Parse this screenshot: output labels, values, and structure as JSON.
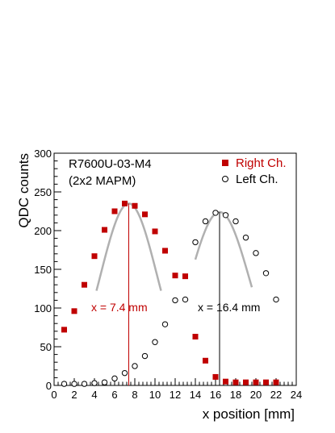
{
  "chart_data": {
    "type": "scatter",
    "xlabel": "x position [mm]",
    "ylabel": "QDC counts",
    "xlim": [
      0,
      24
    ],
    "ylim": [
      0,
      300
    ],
    "x_ticks": [
      "0",
      "2",
      "4",
      "6",
      "8",
      "10",
      "12",
      "14",
      "16",
      "18",
      "20",
      "22",
      "24"
    ],
    "y_ticks": [
      "0",
      "50",
      "100",
      "150",
      "200",
      "250",
      "300"
    ],
    "title_lines": [
      "R7600U-03-M4",
      "(2x2 MAPM)"
    ],
    "legend": {
      "placement": "top-right",
      "entries": [
        {
          "label": "Right Ch.",
          "marker": "filled-square",
          "color": "#c00000"
        },
        {
          "label": "Left Ch.",
          "marker": "open-circle",
          "color": "#000000"
        }
      ]
    },
    "series": [
      {
        "name": "Right Ch.",
        "color": "#c00000",
        "marker": "filled-square",
        "points": [
          [
            1,
            72
          ],
          [
            2,
            96
          ],
          [
            3,
            130
          ],
          [
            4,
            167
          ],
          [
            5,
            201
          ],
          [
            6,
            225
          ],
          [
            7,
            235
          ],
          [
            8,
            232
          ],
          [
            9,
            221
          ],
          [
            10,
            199
          ],
          [
            11,
            174
          ],
          [
            12,
            142
          ],
          [
            13,
            141
          ],
          [
            14,
            63
          ],
          [
            15,
            32
          ],
          [
            16,
            11
          ],
          [
            17,
            5
          ],
          [
            18,
            4
          ],
          [
            19,
            4
          ],
          [
            20,
            4
          ],
          [
            21,
            4
          ],
          [
            22,
            4
          ]
        ]
      },
      {
        "name": "Left Ch.",
        "color": "#000000",
        "marker": "open-circle",
        "points": [
          [
            1,
            2
          ],
          [
            2,
            2
          ],
          [
            3,
            2
          ],
          [
            4,
            3
          ],
          [
            5,
            4
          ],
          [
            6,
            9
          ],
          [
            7,
            16
          ],
          [
            8,
            25
          ],
          [
            9,
            38
          ],
          [
            10,
            56
          ],
          [
            11,
            79
          ],
          [
            12,
            110
          ],
          [
            13,
            111
          ],
          [
            14,
            185
          ],
          [
            15,
            212
          ],
          [
            16,
            223
          ],
          [
            17,
            220
          ],
          [
            18,
            212
          ],
          [
            19,
            191
          ],
          [
            20,
            171
          ],
          [
            21,
            145
          ],
          [
            22,
            111
          ]
        ]
      }
    ],
    "fits": [
      {
        "color": "#b0b0b0",
        "peak_x": 7.4,
        "peak_y": 235,
        "width": 2.8,
        "x_range": [
          4.2,
          10.6
        ]
      },
      {
        "color": "#b0b0b0",
        "peak_x": 16.4,
        "peak_y": 224,
        "width": 3.0,
        "x_range": [
          14.0,
          19.6
        ]
      }
    ],
    "annotations": [
      {
        "text": "x = 7.4 mm",
        "x": 7.4,
        "color": "#c00000",
        "line_top_y": 235
      },
      {
        "text": "x = 16.4 mm",
        "x": 16.4,
        "color": "#000000",
        "line_top_y": 224
      }
    ]
  }
}
